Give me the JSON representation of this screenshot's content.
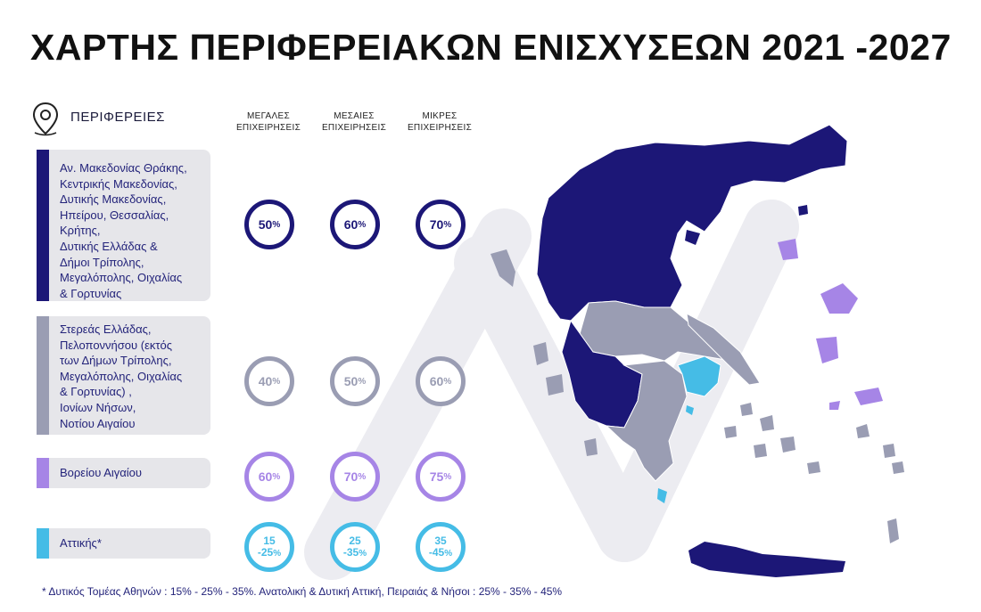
{
  "title": "ΧΑΡΤΗΣ ΠΕΡΙΦΕΡΕΙΑΚΩΝ ΕΝΙΣΧΥΣΕΩΝ 2021 -2027",
  "legend": {
    "heading": "ΠΕΡΙΦΕΡΕΙΕΣ",
    "pin_icon": "map-pin-icon",
    "columns": [
      {
        "line1": "ΜΕΓΑΛΕΣ",
        "line2": "ΕΠΙΧΕΙΡΗΣΕΙΣ"
      },
      {
        "line1": "ΜΕΣΑΙΕΣ",
        "line2": "ΕΠΙΧΕΙΡΗΣΕΙΣ"
      },
      {
        "line1": "ΜΙΚΡΕΣ",
        "line2": "ΕΠΙΧΕΙΡΗΣΕΙΣ"
      }
    ],
    "rows": [
      {
        "color": "#1c1777",
        "lines": [
          "Αν. Μακεδονίας Θράκης,",
          "Κεντρικής Μακεδονίας,",
          "Δυτικής Μακεδονίας,",
          "Ηπείρου, Θεσσαλίας,",
          "Κρήτης,",
          "Δυτικής Ελλάδας &",
          "Δήμοι Τρίπολης,",
          "Μεγαλόπολης, Οιχαλίας",
          "& Γορτυνίας"
        ],
        "rates": [
          {
            "main": "50",
            "unit": "%"
          },
          {
            "main": "60",
            "unit": "%"
          },
          {
            "main": "70",
            "unit": "%"
          }
        ]
      },
      {
        "color": "#9a9db3",
        "lines": [
          "Στερεάς Ελλάδας,",
          "Πελοποννήσου (εκτός",
          "των Δήμων Τρίπολης,",
          "Μεγαλόπολης, Οιχαλίας",
          "& Γορτυνίας) ,",
          "Ιονίων Νήσων,",
          "Νοτίου Αιγαίου"
        ],
        "rates": [
          {
            "main": "40",
            "unit": "%"
          },
          {
            "main": "50",
            "unit": "%"
          },
          {
            "main": "60",
            "unit": "%"
          }
        ]
      },
      {
        "color": "#a685e6",
        "lines": [
          "Βορείου Αιγαίου"
        ],
        "rates": [
          {
            "main": "60",
            "unit": "%"
          },
          {
            "main": "70",
            "unit": "%"
          },
          {
            "main": "75",
            "unit": "%"
          }
        ]
      },
      {
        "color": "#45bce6",
        "lines": [
          "Αττικής*"
        ],
        "rates": [
          {
            "top": "15",
            "bottom": "-25",
            "unit": "%"
          },
          {
            "top": "25",
            "bottom": "-35",
            "unit": "%"
          },
          {
            "top": "35",
            "bottom": "-45",
            "unit": "%"
          }
        ]
      }
    ]
  },
  "footnote": "* Δυτικός Τομέας Αθηνών : 15% - 25% - 35%. Ανατολική & Δυτική Αττική, Πειραιάς & Νήσοι : 25% - 35% - 45%",
  "map": {
    "icon": "greece-regions-map",
    "colors": {
      "dark": "#1c1777",
      "grey": "#9a9db3",
      "purple": "#a685e6",
      "light_blue": "#45bce6"
    }
  }
}
